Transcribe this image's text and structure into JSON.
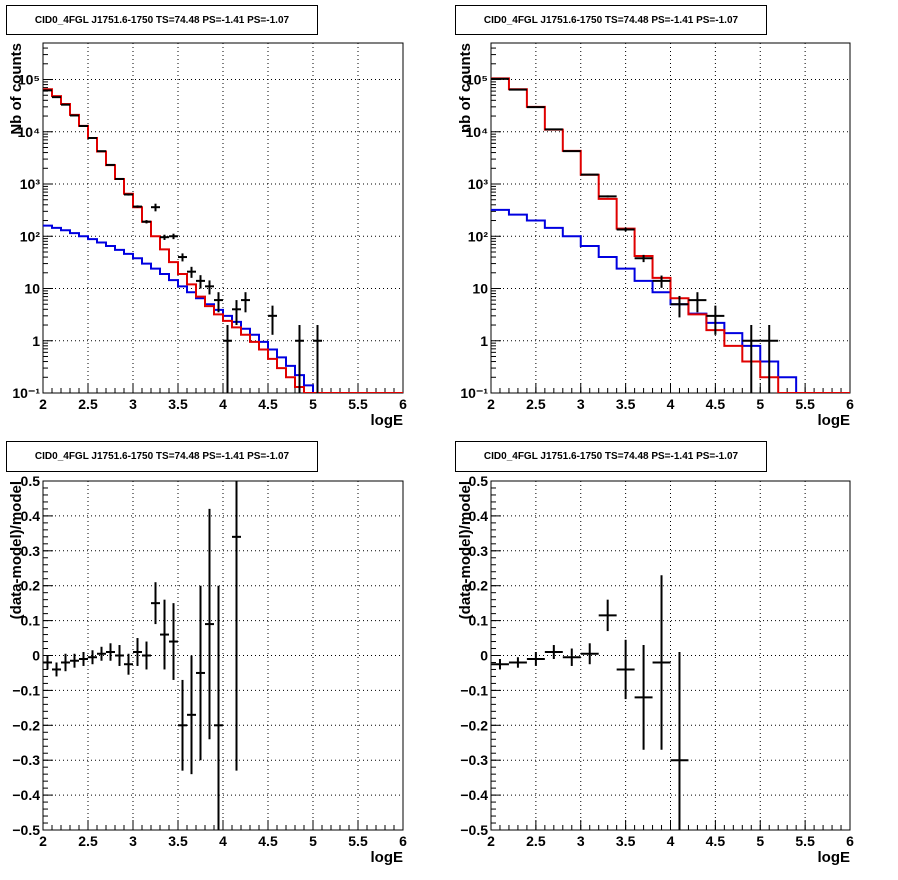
{
  "colors": {
    "data": "#000000",
    "total_model": "#e00000",
    "background_model": "#0000e0"
  },
  "chart_data": [
    {
      "type": "step-histogram",
      "title": "CID0_4FGL J1751.6-1750 TS=74.48 PS=-1.41 PS=-1.07",
      "xlabel": "logE",
      "ylabel": "Nb of counts",
      "xlim": [
        2,
        6
      ],
      "ylim": [
        0.1,
        500000
      ],
      "yscale": "log",
      "grid": true,
      "xticks": [
        2,
        2.5,
        3,
        3.5,
        4,
        4.5,
        5,
        5.5,
        6
      ],
      "xtick_labels": [
        "2",
        "2.5",
        "3",
        "3.5",
        "4",
        "4.5",
        "5",
        "5.5",
        "6"
      ],
      "yticks": [
        0.1,
        1,
        10,
        100,
        1000,
        10000,
        100000
      ],
      "ytick_labels": [
        "10⁻¹",
        "1",
        "10",
        "10²",
        "10³",
        "10⁴",
        "10⁵"
      ],
      "bin_width": 0.1,
      "bin_start": 2.0,
      "series": [
        {
          "color": "total_model",
          "kind": "step",
          "values": [
            65000,
            48000,
            34000,
            21000,
            13000,
            7600,
            4200,
            2300,
            1250,
            650,
            360,
            190,
            100,
            56,
            32,
            19,
            12,
            7,
            4.6,
            3.2,
            2.4,
            1.8,
            1.3,
            0.95,
            0.68,
            0.45,
            0.3,
            0.2,
            0.13,
            0.1,
            0.1,
            0.1,
            0.1,
            0.1,
            0.1,
            0.1,
            0.1,
            0.1,
            0.1,
            0.1
          ]
        },
        {
          "color": "background_model",
          "kind": "step",
          "values": [
            160,
            145,
            130,
            115,
            100,
            88,
            76,
            65,
            55,
            46,
            38,
            30,
            24,
            19,
            14.5,
            11,
            8.5,
            6.5,
            5,
            3.9,
            3,
            2.3,
            1.7,
            1.3,
            0.95,
            0.68,
            0.48,
            0.33,
            0.22,
            0.14,
            0.1,
            0.1,
            0.1,
            0.1,
            0.1,
            0.1,
            0.1,
            0.1,
            0.1,
            0.1
          ]
        },
        {
          "color": "data",
          "kind": "points",
          "points": [
            {
              "x": 2.05,
              "y": 62000,
              "lo": 61500,
              "hi": 62500
            },
            {
              "x": 2.15,
              "y": 46000,
              "lo": 45600,
              "hi": 46400
            },
            {
              "x": 2.25,
              "y": 33000,
              "lo": 32600,
              "hi": 33400
            },
            {
              "x": 2.35,
              "y": 20500,
              "lo": 20200,
              "hi": 20800
            },
            {
              "x": 2.45,
              "y": 12900,
              "lo": 12700,
              "hi": 13100
            },
            {
              "x": 2.55,
              "y": 7600,
              "lo": 7450,
              "hi": 7750
            },
            {
              "x": 2.65,
              "y": 4250,
              "lo": 4150,
              "hi": 4350
            },
            {
              "x": 2.75,
              "y": 2320,
              "lo": 2250,
              "hi": 2390
            },
            {
              "x": 2.85,
              "y": 1250,
              "lo": 1200,
              "hi": 1300
            },
            {
              "x": 2.95,
              "y": 630,
              "lo": 600,
              "hi": 660
            },
            {
              "x": 3.05,
              "y": 370,
              "lo": 350,
              "hi": 390
            },
            {
              "x": 3.15,
              "y": 190,
              "lo": 176,
              "hi": 204
            },
            {
              "x": 3.25,
              "y": 360,
              "lo": 300,
              "hi": 420
            },
            {
              "x": 3.35,
              "y": 96,
              "lo": 85,
              "hi": 107
            },
            {
              "x": 3.45,
              "y": 100,
              "lo": 88,
              "hi": 112
            },
            {
              "x": 3.55,
              "y": 40,
              "lo": 33,
              "hi": 47
            },
            {
              "x": 3.65,
              "y": 21,
              "lo": 16,
              "hi": 26
            },
            {
              "x": 3.75,
              "y": 14,
              "lo": 10,
              "hi": 18
            },
            {
              "x": 3.85,
              "y": 11,
              "lo": 7.7,
              "hi": 14.3
            },
            {
              "x": 3.95,
              "y": 6,
              "lo": 3.5,
              "hi": 8.5
            },
            {
              "x": 4.05,
              "y": 1,
              "lo": 0.1,
              "hi": 2
            },
            {
              "x": 4.15,
              "y": 4,
              "lo": 2,
              "hi": 6
            },
            {
              "x": 4.25,
              "y": 6,
              "lo": 3.5,
              "hi": 8.5
            },
            {
              "x": 4.55,
              "y": 3,
              "lo": 1.3,
              "hi": 4.7
            },
            {
              "x": 4.85,
              "y": 1,
              "lo": 0.1,
              "hi": 2
            },
            {
              "x": 5.05,
              "y": 1,
              "lo": 0.1,
              "hi": 2
            }
          ]
        }
      ]
    },
    {
      "type": "step-histogram",
      "title": "CID0_4FGL J1751.6-1750 TS=74.48 PS=-1.41 PS=-1.07",
      "xlabel": "logE",
      "ylabel": "nb of counts",
      "xlim": [
        2,
        6
      ],
      "ylim": [
        0.1,
        500000
      ],
      "yscale": "log",
      "grid": true,
      "xticks": [
        2,
        2.5,
        3,
        3.5,
        4,
        4.5,
        5,
        5.5,
        6
      ],
      "xtick_labels": [
        "2",
        "2.5",
        "3",
        "3.5",
        "4",
        "4.5",
        "5",
        "5.5",
        "6"
      ],
      "yticks": [
        0.1,
        1,
        10,
        100,
        1000,
        10000,
        100000
      ],
      "ytick_labels": [
        "10⁻¹",
        "1",
        "10",
        "10²",
        "10³",
        "10⁴",
        "10⁵"
      ],
      "bin_width": 0.2,
      "bin_start": 2.0,
      "series": [
        {
          "color": "total_model",
          "kind": "step",
          "values": [
            105000,
            65000,
            30000,
            11000,
            4300,
            1500,
            520,
            140,
            42,
            16,
            6.5,
            3.2,
            1.6,
            0.8,
            0.4,
            0.2,
            0.1,
            0.1,
            0.1,
            0.1
          ]
        },
        {
          "color": "background_model",
          "kind": "step",
          "values": [
            320,
            260,
            200,
            145,
            100,
            65,
            40,
            24,
            14,
            8.5,
            5,
            3.3,
            2.2,
            1.4,
            0.8,
            0.4,
            0.2,
            0.1,
            0.1,
            0.1
          ]
        },
        {
          "color": "data",
          "kind": "points",
          "points": [
            {
              "x": 2.1,
              "y": 103000,
              "lo": 102500,
              "hi": 103500
            },
            {
              "x": 2.3,
              "y": 64000,
              "lo": 63600,
              "hi": 64400
            },
            {
              "x": 2.5,
              "y": 29600,
              "lo": 29300,
              "hi": 29900
            },
            {
              "x": 2.7,
              "y": 11100,
              "lo": 10900,
              "hi": 11300
            },
            {
              "x": 2.9,
              "y": 4250,
              "lo": 4150,
              "hi": 4350
            },
            {
              "x": 3.1,
              "y": 1510,
              "lo": 1460,
              "hi": 1560
            },
            {
              "x": 3.3,
              "y": 580,
              "lo": 555,
              "hi": 605
            },
            {
              "x": 3.5,
              "y": 135,
              "lo": 124,
              "hi": 146
            },
            {
              "x": 3.7,
              "y": 38,
              "lo": 32,
              "hi": 44
            },
            {
              "x": 3.9,
              "y": 14,
              "lo": 10.3,
              "hi": 17.7
            },
            {
              "x": 4.1,
              "y": 5,
              "lo": 2.8,
              "hi": 7.2
            },
            {
              "x": 4.3,
              "y": 6,
              "lo": 3.5,
              "hi": 8.5
            },
            {
              "x": 4.5,
              "y": 3,
              "lo": 1.3,
              "hi": 4.7
            },
            {
              "x": 4.9,
              "y": 1,
              "lo": 0.1,
              "hi": 2
            },
            {
              "x": 5.1,
              "y": 1,
              "lo": 0.1,
              "hi": 2
            }
          ]
        }
      ]
    },
    {
      "type": "scatter-errorbars",
      "title": "CID0_4FGL J1751.6-1750 TS=74.48 PS=-1.41 PS=-1.07",
      "xlabel": "logE",
      "ylabel": "(data-model)/model",
      "xlim": [
        2,
        6
      ],
      "ylim": [
        -0.5,
        0.5
      ],
      "grid": true,
      "xticks": [
        2,
        2.5,
        3,
        3.5,
        4,
        4.5,
        5,
        5.5,
        6
      ],
      "xtick_labels": [
        "2",
        "2.5",
        "3",
        "3.5",
        "4",
        "4.5",
        "5",
        "5.5",
        "6"
      ],
      "yticks": [
        -0.5,
        -0.4,
        -0.3,
        -0.2,
        -0.1,
        0,
        0.1,
        0.2,
        0.3,
        0.4,
        0.5
      ],
      "ytick_labels": [
        "−0.5",
        "−0.4",
        "−0.3",
        "−0.2",
        "−0.1",
        "0",
        "0.1",
        "0.2",
        "0.3",
        "0.4",
        "0.5"
      ],
      "x_halfwidth": 0.05,
      "points": [
        {
          "x": 2.05,
          "y": -0.02,
          "err": 0.02
        },
        {
          "x": 2.15,
          "y": -0.04,
          "err": 0.02
        },
        {
          "x": 2.25,
          "y": -0.02,
          "err": 0.025
        },
        {
          "x": 2.35,
          "y": -0.015,
          "err": 0.02
        },
        {
          "x": 2.45,
          "y": -0.01,
          "err": 0.02
        },
        {
          "x": 2.55,
          "y": -0.005,
          "err": 0.02
        },
        {
          "x": 2.65,
          "y": 0.005,
          "err": 0.02
        },
        {
          "x": 2.75,
          "y": 0.01,
          "err": 0.025
        },
        {
          "x": 2.85,
          "y": 0.0,
          "err": 0.03
        },
        {
          "x": 2.95,
          "y": -0.025,
          "err": 0.03
        },
        {
          "x": 3.05,
          "y": 0.01,
          "err": 0.04
        },
        {
          "x": 3.15,
          "y": 0.0,
          "err": 0.04
        },
        {
          "x": 3.25,
          "y": 0.15,
          "err": 0.06
        },
        {
          "x": 3.35,
          "y": 0.06,
          "err": 0.1
        },
        {
          "x": 3.45,
          "y": 0.04,
          "err": 0.11
        },
        {
          "x": 3.55,
          "y": -0.2,
          "err": 0.13
        },
        {
          "x": 3.65,
          "y": -0.17,
          "err": 0.17
        },
        {
          "x": 3.75,
          "y": -0.05,
          "err": 0.25
        },
        {
          "x": 3.85,
          "y": 0.09,
          "err": 0.33
        },
        {
          "x": 3.95,
          "y": -0.2,
          "err": 0.4
        },
        {
          "x": 4.15,
          "y": 0.34,
          "err": 0.67
        }
      ]
    },
    {
      "type": "scatter-errorbars",
      "title": "CID0_4FGL J1751.6-1750 TS=74.48 PS=-1.41 PS=-1.07",
      "xlabel": "logE",
      "ylabel": "(data-model)/model",
      "xlim": [
        2,
        6
      ],
      "ylim": [
        -0.5,
        0.5
      ],
      "grid": true,
      "xticks": [
        2,
        2.5,
        3,
        3.5,
        4,
        4.5,
        5,
        5.5,
        6
      ],
      "xtick_labels": [
        "2",
        "2.5",
        "3",
        "3.5",
        "4",
        "4.5",
        "5",
        "5.5",
        "6"
      ],
      "yticks": [
        -0.5,
        -0.4,
        -0.3,
        -0.2,
        -0.1,
        0,
        0.1,
        0.2,
        0.3,
        0.4,
        0.5
      ],
      "ytick_labels": [
        "−0.5",
        "−0.4",
        "−0.3",
        "−0.2",
        "−0.1",
        "0",
        "0.1",
        "0.2",
        "0.3",
        "0.4",
        "0.5"
      ],
      "x_halfwidth": 0.1,
      "points": [
        {
          "x": 2.1,
          "y": -0.025,
          "err": 0.015
        },
        {
          "x": 2.3,
          "y": -0.02,
          "err": 0.015
        },
        {
          "x": 2.5,
          "y": -0.01,
          "err": 0.02
        },
        {
          "x": 2.7,
          "y": 0.01,
          "err": 0.02
        },
        {
          "x": 2.9,
          "y": -0.005,
          "err": 0.025
        },
        {
          "x": 3.1,
          "y": 0.005,
          "err": 0.03
        },
        {
          "x": 3.3,
          "y": 0.115,
          "err": 0.045
        },
        {
          "x": 3.5,
          "y": -0.04,
          "err": 0.085
        },
        {
          "x": 3.7,
          "y": -0.12,
          "err": 0.15
        },
        {
          "x": 3.9,
          "y": -0.02,
          "err": 0.25
        },
        {
          "x": 4.1,
          "y": -0.3,
          "err": 0.31
        }
      ]
    }
  ]
}
